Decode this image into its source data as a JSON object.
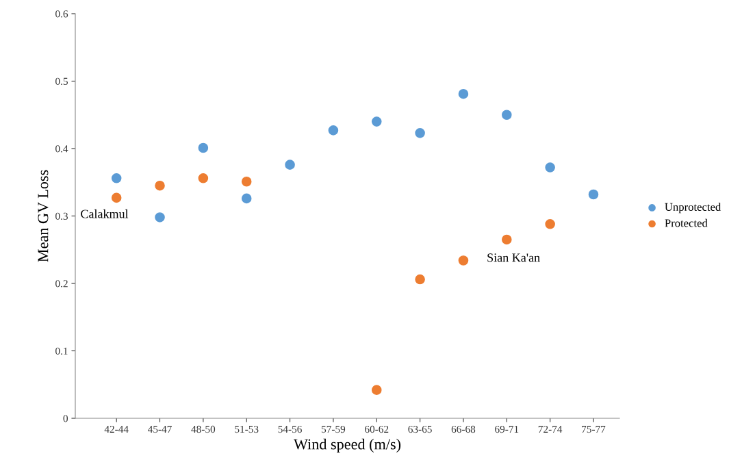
{
  "chart_data": {
    "type": "scatter",
    "xlabel": "Wind speed (m/s)",
    "ylabel": "Mean GV Loss",
    "categories": [
      "42-44",
      "45-47",
      "48-50",
      "51-53",
      "54-56",
      "57-59",
      "60-62",
      "63-65",
      "66-68",
      "69-71",
      "72-74",
      "75-77"
    ],
    "series": [
      {
        "name": "Unprotected",
        "color": "#5b9bd5",
        "values": [
          0.356,
          0.298,
          0.401,
          0.326,
          0.376,
          0.427,
          0.44,
          0.423,
          0.481,
          0.45,
          0.372,
          0.332
        ]
      },
      {
        "name": "Protected",
        "color": "#ed7d31",
        "values": [
          0.327,
          0.345,
          0.356,
          0.351,
          null,
          null,
          0.042,
          0.206,
          0.234,
          0.265,
          0.288,
          null
        ]
      }
    ],
    "ylim": [
      0,
      0.6
    ],
    "yticks": [
      0,
      0.1,
      0.2,
      0.3,
      0.4,
      0.5,
      0.6
    ],
    "annotations": [
      {
        "text": "Calakmul",
        "x": "42-44",
        "y": 0.327
      },
      {
        "text": "Sian Ka'an",
        "x": "69-71",
        "y": 0.265
      }
    ],
    "marker": "circle",
    "legend": "right",
    "grid": false
  }
}
